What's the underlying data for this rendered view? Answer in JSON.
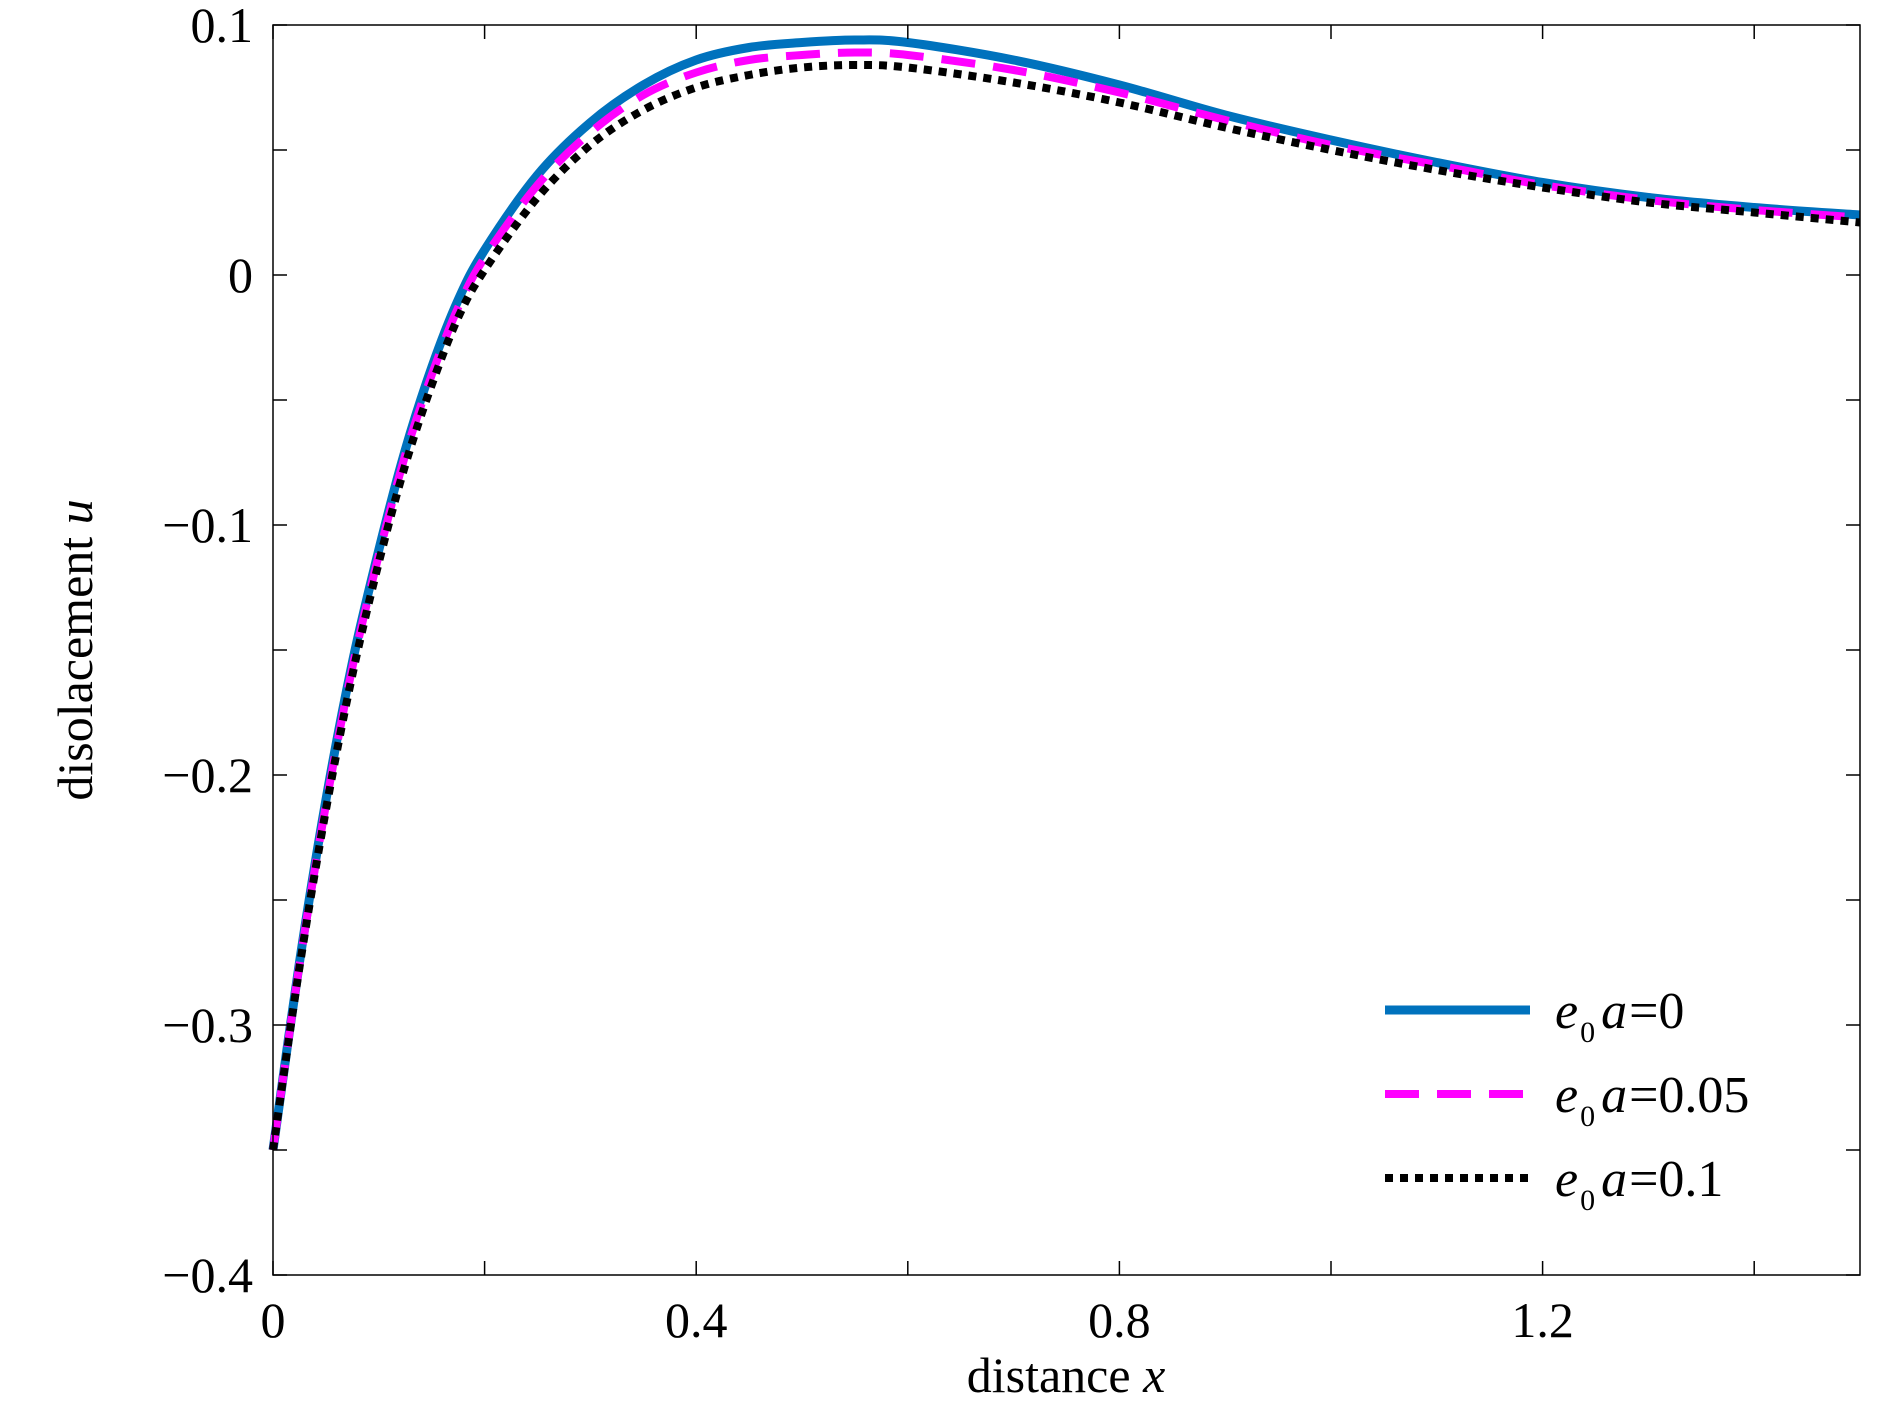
{
  "chart_data": {
    "type": "line",
    "title": "",
    "xlabel": "distance",
    "xlabel_var": "x",
    "ylabel": "disolacement",
    "ylabel_var": "u",
    "xlim": [
      0,
      1.5
    ],
    "ylim": [
      -0.4,
      0.1
    ],
    "xticks": [
      0,
      0.2,
      0.4,
      0.6,
      0.8,
      1.0,
      1.2,
      1.4
    ],
    "xtick_labels": [
      "0",
      "",
      "0.4",
      "",
      "0.8",
      "",
      "1.2",
      ""
    ],
    "yticks": [
      -0.4,
      -0.35,
      -0.3,
      -0.25,
      -0.2,
      -0.15,
      -0.1,
      -0.05,
      0,
      0.05,
      0.1
    ],
    "ytick_labels": [
      "−0.4",
      "",
      "−0.3",
      "",
      "−0.2",
      "",
      "−0.1",
      "",
      "0",
      "",
      "0.1"
    ],
    "grid": false,
    "legend_position": "bottom-right",
    "x": [
      0,
      0.025,
      0.05,
      0.075,
      0.1,
      0.125,
      0.15,
      0.175,
      0.2,
      0.25,
      0.3,
      0.35,
      0.4,
      0.45,
      0.5,
      0.55,
      0.6,
      0.7,
      0.8,
      0.9,
      1.0,
      1.1,
      1.2,
      1.3,
      1.4,
      1.5
    ],
    "series": [
      {
        "legend_var": "e",
        "legend_sub": "0",
        "legend_var2": "a",
        "legend_value": "=0",
        "color": "#0072BD",
        "style": "solid",
        "values": [
          -0.35,
          -0.275,
          -0.21,
          -0.155,
          -0.11,
          -0.07,
          -0.037,
          -0.01,
          0.01,
          0.04,
          0.061,
          0.076,
          0.086,
          0.091,
          0.093,
          0.094,
          0.093,
          0.086,
          0.076,
          0.064,
          0.054,
          0.045,
          0.037,
          0.031,
          0.027,
          0.024
        ]
      },
      {
        "legend_var": "e",
        "legend_sub": "0",
        "legend_var2": "a",
        "legend_value": "=0.05",
        "color": "#FF00FF",
        "style": "dashed",
        "values": [
          -0.35,
          -0.276,
          -0.212,
          -0.157,
          -0.112,
          -0.072,
          -0.04,
          -0.013,
          0.007,
          0.036,
          0.057,
          0.072,
          0.081,
          0.086,
          0.088,
          0.089,
          0.088,
          0.082,
          0.073,
          0.062,
          0.052,
          0.044,
          0.036,
          0.03,
          0.026,
          0.023
        ]
      },
      {
        "legend_var": "e",
        "legend_sub": "0",
        "legend_var2": "a",
        "legend_value": "=0.1",
        "color": "#000000",
        "style": "dotted",
        "values": [
          -0.35,
          -0.277,
          -0.214,
          -0.16,
          -0.115,
          -0.076,
          -0.044,
          -0.017,
          0.002,
          0.031,
          0.052,
          0.066,
          0.075,
          0.08,
          0.083,
          0.084,
          0.083,
          0.077,
          0.069,
          0.059,
          0.05,
          0.042,
          0.035,
          0.029,
          0.025,
          0.021
        ]
      }
    ]
  }
}
